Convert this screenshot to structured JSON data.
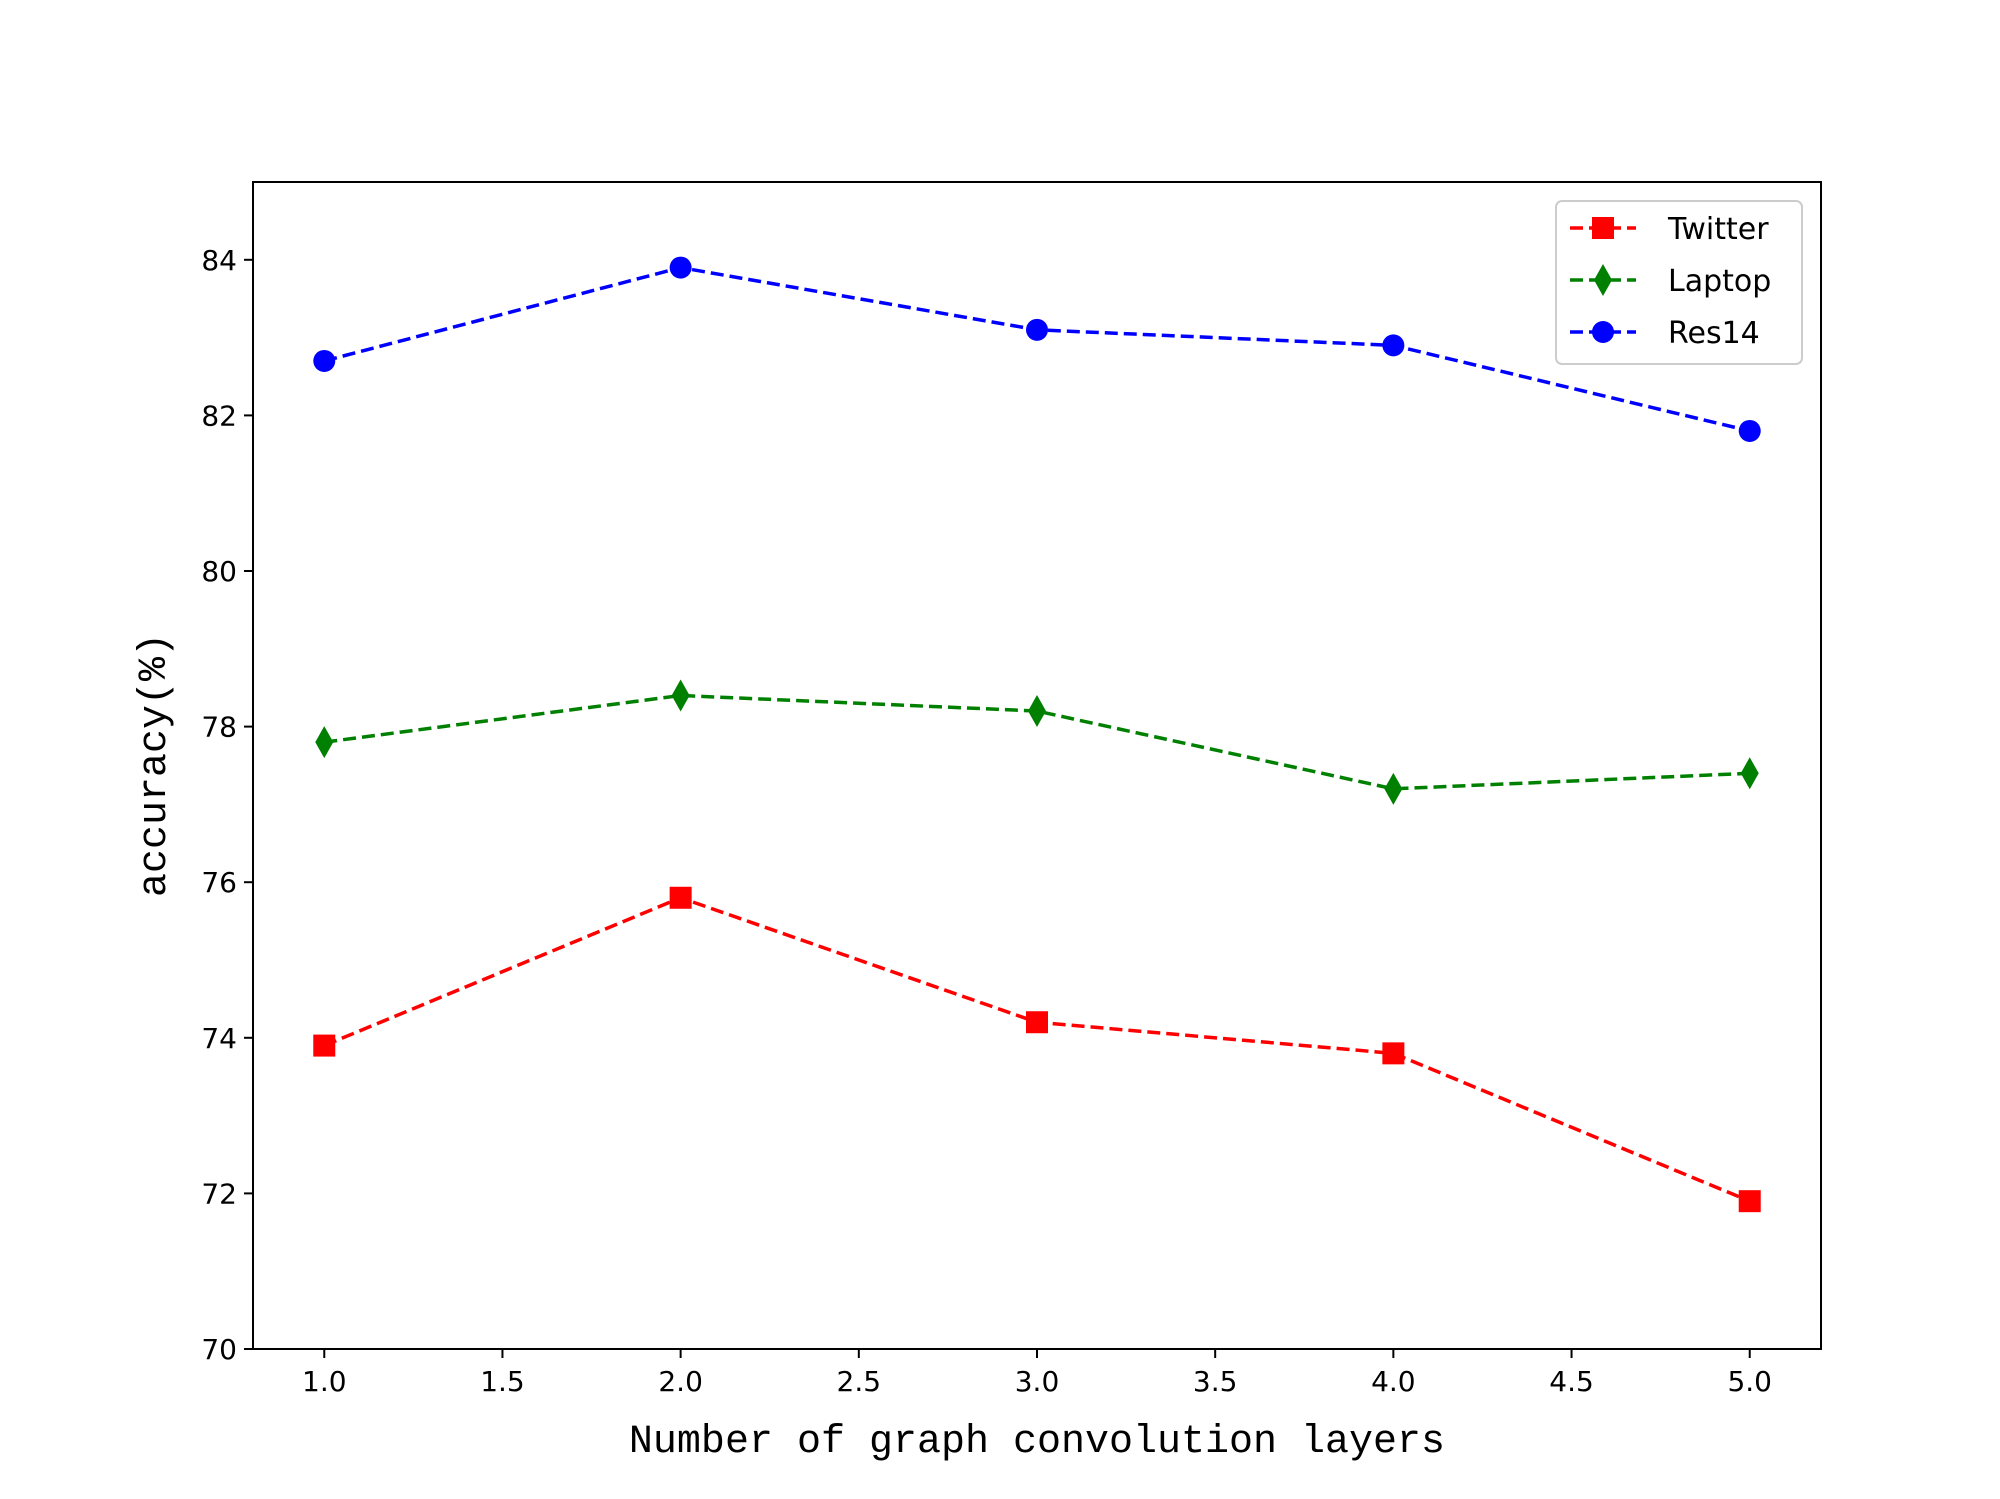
{
  "chart_data": {
    "type": "line",
    "xlabel": "Number of graph convolution layers",
    "ylabel": "accuracy(%)",
    "xlim": [
      0.8,
      5.2
    ],
    "ylim": [
      70,
      85
    ],
    "xticks": [
      "1.0",
      "1.5",
      "2.0",
      "2.5",
      "3.0",
      "3.5",
      "4.0",
      "4.5",
      "5.0"
    ],
    "yticks": [
      "70",
      "72",
      "74",
      "76",
      "78",
      "80",
      "82",
      "84"
    ],
    "grid": false,
    "legend_position": "top-right",
    "x": [
      1,
      2,
      3,
      4,
      5
    ],
    "series": [
      {
        "name": "Twitter",
        "values": [
          73.9,
          75.8,
          74.2,
          73.8,
          71.9
        ],
        "color": "#ff0000",
        "marker": "square",
        "linestyle": "dashed"
      },
      {
        "name": "Laptop",
        "values": [
          77.8,
          78.4,
          78.2,
          77.2,
          77.4
        ],
        "color": "#008000",
        "marker": "diamond",
        "linestyle": "dashed"
      },
      {
        "name": "Res14",
        "values": [
          82.7,
          83.9,
          83.1,
          82.9,
          81.8
        ],
        "color": "#0000ff",
        "marker": "circle",
        "linestyle": "dashed"
      }
    ]
  }
}
